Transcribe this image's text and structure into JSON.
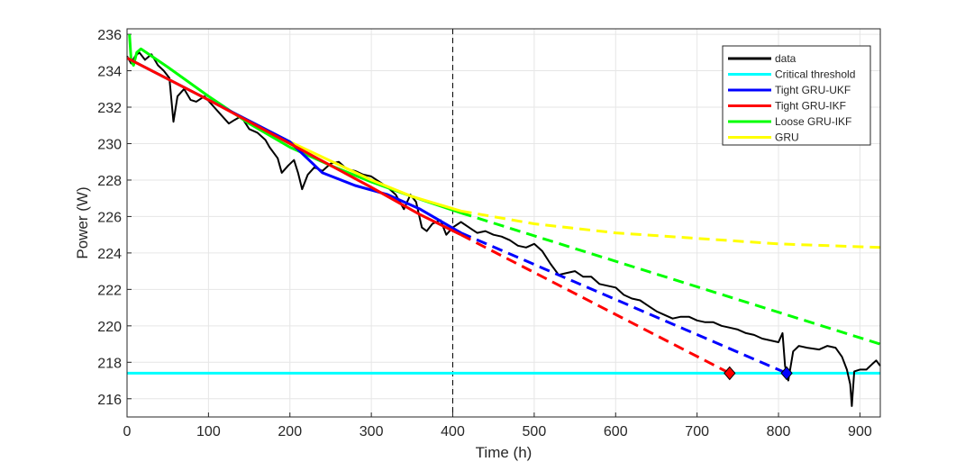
{
  "chart_data": {
    "type": "line",
    "xlabel": "Time (h)",
    "ylabel": "Power (W)",
    "xlim": [
      0,
      925
    ],
    "ylim": [
      215,
      236.3
    ],
    "xticks": [
      0,
      100,
      200,
      300,
      400,
      500,
      600,
      700,
      800,
      900
    ],
    "yticks": [
      216,
      218,
      220,
      222,
      224,
      226,
      228,
      230,
      232,
      234,
      236
    ],
    "grid": true,
    "legend_position": "top-right",
    "vline_x": 400,
    "threshold": 217.4,
    "series": [
      {
        "name": "data",
        "color": "#000000",
        "style": "solid",
        "points": [
          [
            0,
            234.8
          ],
          [
            5,
            234.4
          ],
          [
            10,
            234.8
          ],
          [
            15,
            235
          ],
          [
            22,
            234.6
          ],
          [
            30,
            234.9
          ],
          [
            38,
            234.3
          ],
          [
            45,
            234
          ],
          [
            52,
            233.6
          ],
          [
            57,
            231.2
          ],
          [
            62,
            232.6
          ],
          [
            70,
            233
          ],
          [
            78,
            232.4
          ],
          [
            85,
            232.3
          ],
          [
            95,
            232.6
          ],
          [
            105,
            232.1
          ],
          [
            115,
            231.6
          ],
          [
            125,
            231.1
          ],
          [
            132,
            231.3
          ],
          [
            140,
            231.5
          ],
          [
            150,
            230.8
          ],
          [
            160,
            230.6
          ],
          [
            170,
            230.2
          ],
          [
            175,
            229.8
          ],
          [
            185,
            229.2
          ],
          [
            190,
            228.4
          ],
          [
            198,
            228.8
          ],
          [
            205,
            229.1
          ],
          [
            210,
            228.4
          ],
          [
            215,
            227.5
          ],
          [
            222,
            228.3
          ],
          [
            230,
            228.7
          ],
          [
            240,
            228.5
          ],
          [
            250,
            228.9
          ],
          [
            260,
            229
          ],
          [
            270,
            228.6
          ],
          [
            280,
            228.5
          ],
          [
            290,
            228.3
          ],
          [
            300,
            228.2
          ],
          [
            310,
            227.9
          ],
          [
            320,
            227.6
          ],
          [
            330,
            227.2
          ],
          [
            340,
            226.4
          ],
          [
            348,
            227.2
          ],
          [
            355,
            226.8
          ],
          [
            362,
            225.4
          ],
          [
            368,
            225.2
          ],
          [
            375,
            225.6
          ],
          [
            385,
            225.8
          ],
          [
            392,
            225
          ],
          [
            400,
            225.4
          ],
          [
            410,
            225.7
          ],
          [
            420,
            225.4
          ],
          [
            430,
            225.1
          ],
          [
            440,
            225.2
          ],
          [
            450,
            225
          ],
          [
            460,
            224.9
          ],
          [
            470,
            224.7
          ],
          [
            480,
            224.4
          ],
          [
            490,
            224.3
          ],
          [
            500,
            224.5
          ],
          [
            510,
            224.1
          ],
          [
            520,
            223.4
          ],
          [
            530,
            222.8
          ],
          [
            540,
            222.9
          ],
          [
            550,
            223
          ],
          [
            560,
            222.7
          ],
          [
            570,
            222.7
          ],
          [
            580,
            222.3
          ],
          [
            590,
            222.2
          ],
          [
            600,
            222.1
          ],
          [
            610,
            221.7
          ],
          [
            620,
            221.5
          ],
          [
            630,
            221.4
          ],
          [
            640,
            221.1
          ],
          [
            650,
            220.8
          ],
          [
            660,
            220.6
          ],
          [
            670,
            220.4
          ],
          [
            680,
            220.5
          ],
          [
            690,
            220.5
          ],
          [
            700,
            220.3
          ],
          [
            710,
            220.2
          ],
          [
            720,
            220.2
          ],
          [
            730,
            220
          ],
          [
            740,
            219.9
          ],
          [
            750,
            219.8
          ],
          [
            760,
            219.6
          ],
          [
            770,
            219.5
          ],
          [
            780,
            219.3
          ],
          [
            790,
            219.2
          ],
          [
            800,
            219.1
          ],
          [
            805,
            219.6
          ],
          [
            808,
            217.8
          ],
          [
            812,
            217
          ],
          [
            818,
            218.6
          ],
          [
            825,
            218.9
          ],
          [
            835,
            218.8
          ],
          [
            850,
            218.7
          ],
          [
            860,
            218.9
          ],
          [
            870,
            218.8
          ],
          [
            878,
            218.3
          ],
          [
            884,
            217.6
          ],
          [
            888,
            216.8
          ],
          [
            890,
            215.6
          ],
          [
            893,
            217.5
          ],
          [
            900,
            217.6
          ],
          [
            908,
            217.6
          ],
          [
            915,
            217.9
          ],
          [
            920,
            218.1
          ],
          [
            925,
            217.8
          ]
        ]
      },
      {
        "name": "Critical threshold",
        "color": "#00FFFF",
        "style": "solid",
        "points": [
          [
            0,
            217.4
          ],
          [
            925,
            217.4
          ]
        ]
      },
      {
        "name": "Tight GRU-UKF",
        "color": "#0000FF",
        "style": "solid",
        "points": [
          [
            0,
            234.7
          ],
          [
            100,
            232.4
          ],
          [
            200,
            230.1
          ],
          [
            240,
            228.4
          ],
          [
            280,
            227.7
          ],
          [
            320,
            227.2
          ],
          [
            360,
            226.4
          ],
          [
            410,
            225.1
          ]
        ],
        "forecast": [
          [
            410,
            225.1
          ],
          [
            810,
            217.4
          ]
        ]
      },
      {
        "name": "Tight GRU-IKF",
        "color": "#FF0000",
        "style": "solid",
        "points": [
          [
            0,
            234.7
          ],
          [
            100,
            232.4
          ],
          [
            200,
            230
          ],
          [
            300,
            227.6
          ],
          [
            360,
            226.1
          ],
          [
            410,
            225
          ]
        ],
        "forecast": [
          [
            410,
            225
          ],
          [
            740,
            217.4
          ]
        ]
      },
      {
        "name": "Loose GRU-IKF",
        "color": "#00FF00",
        "style": "solid",
        "points": [
          [
            3,
            236
          ],
          [
            5,
            234.6
          ],
          [
            8,
            234.3
          ],
          [
            12,
            235
          ],
          [
            17,
            235.2
          ],
          [
            50,
            234.2
          ],
          [
            100,
            232.6
          ],
          [
            150,
            231.1
          ],
          [
            200,
            229.8
          ],
          [
            250,
            228.8
          ],
          [
            300,
            227.9
          ],
          [
            350,
            227.1
          ],
          [
            410,
            226.2
          ]
        ],
        "forecast": [
          [
            410,
            226.2
          ],
          [
            925,
            219
          ]
        ]
      },
      {
        "name": "GRU",
        "color": "#FFFF00",
        "style": "solid",
        "points": [
          [
            0,
            234.7
          ],
          [
            100,
            232.4
          ],
          [
            200,
            230.1
          ],
          [
            300,
            228
          ],
          [
            350,
            227.1
          ],
          [
            410,
            226.3
          ]
        ],
        "forecast": [
          [
            410,
            226.3
          ],
          [
            500,
            225.6
          ],
          [
            600,
            225.1
          ],
          [
            700,
            224.8
          ],
          [
            800,
            224.5
          ],
          [
            925,
            224.3
          ]
        ]
      }
    ],
    "markers": [
      {
        "series": "Tight GRU-IKF",
        "x": 740,
        "y": 217.4,
        "color": "#FF0000",
        "shape": "diamond"
      },
      {
        "series": "Tight GRU-UKF",
        "x": 810,
        "y": 217.4,
        "color": "#0000FF",
        "shape": "diamond"
      }
    ]
  }
}
